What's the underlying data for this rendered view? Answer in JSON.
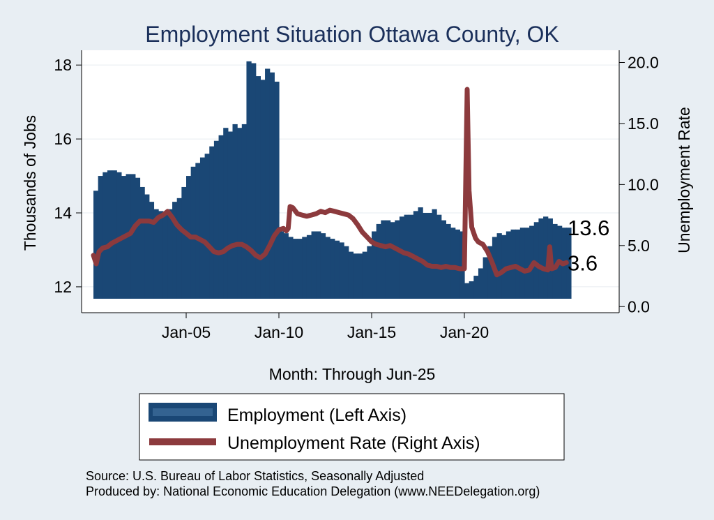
{
  "colors": {
    "background": "#e8eef3",
    "plot_background": "#ffffff",
    "title": "#1a2f5a",
    "employment": "#1a4775",
    "unemployment": "#8c3a3d",
    "gridline": "#e6ecf1"
  },
  "chart_data": {
    "type": "bar",
    "title": "Employment Situation Ottawa  County, OK",
    "xlabel": "Month: Through Jun-25",
    "ylabel_left": "Thousands of Jobs",
    "ylabel_right": "Unemployment Rate",
    "x_range": [
      2000.0,
      2025.5
    ],
    "x_ticks": [
      {
        "value": 2005.0,
        "label": "Jan-05"
      },
      {
        "value": 2010.0,
        "label": "Jan-10"
      },
      {
        "value": 2015.0,
        "label": "Jan-15"
      },
      {
        "value": 2020.0,
        "label": "Jan-20"
      }
    ],
    "ylim_left": [
      11.3,
      18.4
    ],
    "y_ticks_left": [
      {
        "value": 12,
        "label": "12"
      },
      {
        "value": 14,
        "label": "14"
      },
      {
        "value": 16,
        "label": "16"
      },
      {
        "value": 18,
        "label": "18"
      }
    ],
    "ylim_right": [
      -0.5,
      21.0
    ],
    "y_ticks_right": [
      {
        "value": 0,
        "label": "0.0"
      },
      {
        "value": 5,
        "label": "5.0"
      },
      {
        "value": 10,
        "label": "10.0"
      },
      {
        "value": 15,
        "label": "15.0"
      },
      {
        "value": 20,
        "label": "20.0"
      }
    ],
    "grid": true,
    "series": [
      {
        "name": "Employment (Left Axis)",
        "axis": "left",
        "style": "bar",
        "points": [
          [
            2000.0,
            14.6
          ],
          [
            2000.25,
            15.0
          ],
          [
            2000.5,
            15.1
          ],
          [
            2000.75,
            15.15
          ],
          [
            2001.0,
            15.15
          ],
          [
            2001.25,
            15.1
          ],
          [
            2001.5,
            15.0
          ],
          [
            2001.75,
            15.05
          ],
          [
            2002.0,
            15.05
          ],
          [
            2002.25,
            14.95
          ],
          [
            2002.5,
            14.7
          ],
          [
            2002.75,
            14.5
          ],
          [
            2003.0,
            14.3
          ],
          [
            2003.25,
            14.1
          ],
          [
            2003.5,
            14.05
          ],
          [
            2003.75,
            14.0
          ],
          [
            2004.0,
            14.1
          ],
          [
            2004.25,
            14.3
          ],
          [
            2004.5,
            14.4
          ],
          [
            2004.75,
            14.7
          ],
          [
            2005.0,
            15.0
          ],
          [
            2005.25,
            15.25
          ],
          [
            2005.5,
            15.35
          ],
          [
            2005.75,
            15.5
          ],
          [
            2006.0,
            15.6
          ],
          [
            2006.25,
            15.8
          ],
          [
            2006.5,
            15.95
          ],
          [
            2006.75,
            16.1
          ],
          [
            2007.0,
            16.3
          ],
          [
            2007.25,
            16.2
          ],
          [
            2007.5,
            16.4
          ],
          [
            2007.75,
            16.3
          ],
          [
            2008.0,
            16.4
          ],
          [
            2008.25,
            18.1
          ],
          [
            2008.5,
            18.05
          ],
          [
            2008.75,
            17.7
          ],
          [
            2009.0,
            17.6
          ],
          [
            2009.25,
            17.9
          ],
          [
            2009.5,
            17.8
          ],
          [
            2009.75,
            17.55
          ],
          [
            2010.0,
            13.5
          ],
          [
            2010.25,
            13.45
          ],
          [
            2010.5,
            13.35
          ],
          [
            2010.75,
            13.3
          ],
          [
            2011.0,
            13.3
          ],
          [
            2011.25,
            13.35
          ],
          [
            2011.5,
            13.4
          ],
          [
            2011.75,
            13.5
          ],
          [
            2012.0,
            13.5
          ],
          [
            2012.25,
            13.45
          ],
          [
            2012.5,
            13.35
          ],
          [
            2012.75,
            13.3
          ],
          [
            2013.0,
            13.25
          ],
          [
            2013.25,
            13.2
          ],
          [
            2013.5,
            13.1
          ],
          [
            2013.75,
            12.95
          ],
          [
            2014.0,
            12.9
          ],
          [
            2014.25,
            12.9
          ],
          [
            2014.5,
            12.95
          ],
          [
            2014.75,
            13.1
          ],
          [
            2015.0,
            13.5
          ],
          [
            2015.25,
            13.7
          ],
          [
            2015.5,
            13.8
          ],
          [
            2015.75,
            13.8
          ],
          [
            2016.0,
            13.75
          ],
          [
            2016.25,
            13.8
          ],
          [
            2016.5,
            13.9
          ],
          [
            2016.75,
            13.95
          ],
          [
            2017.0,
            13.95
          ],
          [
            2017.25,
            14.05
          ],
          [
            2017.5,
            14.15
          ],
          [
            2017.75,
            14.0
          ],
          [
            2018.0,
            14.0
          ],
          [
            2018.25,
            14.1
          ],
          [
            2018.5,
            13.95
          ],
          [
            2018.75,
            13.8
          ],
          [
            2019.0,
            13.7
          ],
          [
            2019.25,
            13.6
          ],
          [
            2019.5,
            13.55
          ],
          [
            2019.75,
            13.5
          ],
          [
            2020.0,
            12.1
          ],
          [
            2020.25,
            12.15
          ],
          [
            2020.5,
            12.3
          ],
          [
            2020.75,
            12.5
          ],
          [
            2021.0,
            12.8
          ],
          [
            2021.25,
            13.1
          ],
          [
            2021.5,
            13.35
          ],
          [
            2021.75,
            13.45
          ],
          [
            2022.0,
            13.4
          ],
          [
            2022.25,
            13.5
          ],
          [
            2022.5,
            13.55
          ],
          [
            2022.75,
            13.55
          ],
          [
            2023.0,
            13.6
          ],
          [
            2023.25,
            13.6
          ],
          [
            2023.5,
            13.65
          ],
          [
            2023.75,
            13.75
          ],
          [
            2024.0,
            13.85
          ],
          [
            2024.25,
            13.9
          ],
          [
            2024.5,
            13.85
          ],
          [
            2024.75,
            13.7
          ],
          [
            2025.0,
            13.65
          ],
          [
            2025.25,
            13.6
          ],
          [
            2025.5,
            13.6
          ]
        ]
      },
      {
        "name": "Unemployment Rate (Right Axis)",
        "axis": "right",
        "style": "line",
        "points": [
          [
            2000.0,
            4.2
          ],
          [
            2000.15,
            3.5
          ],
          [
            2000.3,
            4.5
          ],
          [
            2000.5,
            4.8
          ],
          [
            2000.75,
            4.9
          ],
          [
            2001.0,
            5.2
          ],
          [
            2001.5,
            5.6
          ],
          [
            2002.0,
            6.0
          ],
          [
            2002.25,
            6.6
          ],
          [
            2002.5,
            7.0
          ],
          [
            2003.0,
            7.0
          ],
          [
            2003.25,
            6.9
          ],
          [
            2003.5,
            7.3
          ],
          [
            2003.75,
            7.5
          ],
          [
            2004.0,
            7.8
          ],
          [
            2004.25,
            7.3
          ],
          [
            2004.5,
            6.7
          ],
          [
            2004.75,
            6.3
          ],
          [
            2005.0,
            6.0
          ],
          [
            2005.25,
            5.7
          ],
          [
            2005.5,
            5.7
          ],
          [
            2005.75,
            5.5
          ],
          [
            2006.0,
            5.3
          ],
          [
            2006.25,
            4.9
          ],
          [
            2006.5,
            4.5
          ],
          [
            2006.75,
            4.4
          ],
          [
            2007.0,
            4.5
          ],
          [
            2007.25,
            4.8
          ],
          [
            2007.5,
            5.0
          ],
          [
            2007.75,
            5.1
          ],
          [
            2008.0,
            5.1
          ],
          [
            2008.25,
            4.9
          ],
          [
            2008.5,
            4.6
          ],
          [
            2008.75,
            4.2
          ],
          [
            2009.0,
            4.0
          ],
          [
            2009.25,
            4.3
          ],
          [
            2009.5,
            5.0
          ],
          [
            2009.75,
            5.8
          ],
          [
            2010.0,
            6.3
          ],
          [
            2010.25,
            6.4
          ],
          [
            2010.4,
            6.2
          ],
          [
            2010.5,
            6.4
          ],
          [
            2010.6,
            8.2
          ],
          [
            2010.75,
            8.1
          ],
          [
            2011.0,
            7.6
          ],
          [
            2011.25,
            7.5
          ],
          [
            2011.5,
            7.4
          ],
          [
            2011.75,
            7.5
          ],
          [
            2012.0,
            7.6
          ],
          [
            2012.25,
            7.8
          ],
          [
            2012.5,
            7.7
          ],
          [
            2012.75,
            7.9
          ],
          [
            2013.0,
            7.8
          ],
          [
            2013.25,
            7.7
          ],
          [
            2013.5,
            7.6
          ],
          [
            2013.75,
            7.5
          ],
          [
            2014.0,
            7.2
          ],
          [
            2014.25,
            6.7
          ],
          [
            2014.5,
            6.1
          ],
          [
            2014.75,
            5.7
          ],
          [
            2015.0,
            5.3
          ],
          [
            2015.25,
            5.1
          ],
          [
            2015.5,
            5.0
          ],
          [
            2015.75,
            4.9
          ],
          [
            2016.0,
            5.0
          ],
          [
            2016.25,
            4.8
          ],
          [
            2016.5,
            4.6
          ],
          [
            2016.75,
            4.4
          ],
          [
            2017.0,
            4.3
          ],
          [
            2017.25,
            4.1
          ],
          [
            2017.5,
            3.9
          ],
          [
            2017.75,
            3.7
          ],
          [
            2018.0,
            3.4
          ],
          [
            2018.25,
            3.3
          ],
          [
            2018.5,
            3.3
          ],
          [
            2018.75,
            3.2
          ],
          [
            2019.0,
            3.3
          ],
          [
            2019.25,
            3.2
          ],
          [
            2019.5,
            3.2
          ],
          [
            2019.75,
            3.1
          ],
          [
            2020.0,
            3.1
          ],
          [
            2020.15,
            17.8
          ],
          [
            2020.25,
            9.5
          ],
          [
            2020.4,
            6.5
          ],
          [
            2020.6,
            5.6
          ],
          [
            2020.75,
            5.3
          ],
          [
            2021.0,
            5.1
          ],
          [
            2021.25,
            4.5
          ],
          [
            2021.5,
            3.6
          ],
          [
            2021.75,
            2.6
          ],
          [
            2022.0,
            2.8
          ],
          [
            2022.25,
            3.1
          ],
          [
            2022.5,
            3.2
          ],
          [
            2022.75,
            3.3
          ],
          [
            2023.0,
            3.1
          ],
          [
            2023.25,
            2.9
          ],
          [
            2023.5,
            3.0
          ],
          [
            2023.75,
            3.6
          ],
          [
            2024.0,
            3.3
          ],
          [
            2024.25,
            3.1
          ],
          [
            2024.5,
            3.0
          ],
          [
            2024.6,
            4.9
          ],
          [
            2024.7,
            3.1
          ],
          [
            2024.9,
            3.2
          ],
          [
            2025.1,
            3.7
          ],
          [
            2025.3,
            3.5
          ],
          [
            2025.5,
            3.6
          ]
        ]
      }
    ],
    "end_labels": {
      "employment": "13.6",
      "unemployment": "3.6"
    },
    "legend": {
      "position": "bottom",
      "items": [
        {
          "label": "Employment (Left Axis)",
          "series": "employment"
        },
        {
          "label": "Unemployment Rate (Right Axis)",
          "series": "unemployment"
        }
      ]
    },
    "annotations": [
      "Source: U.S. Bureau of Labor Statistics, Seasonally Adjusted",
      "Produced by: National Economic Education Delegation (www.NEEDelegation.org)"
    ]
  }
}
